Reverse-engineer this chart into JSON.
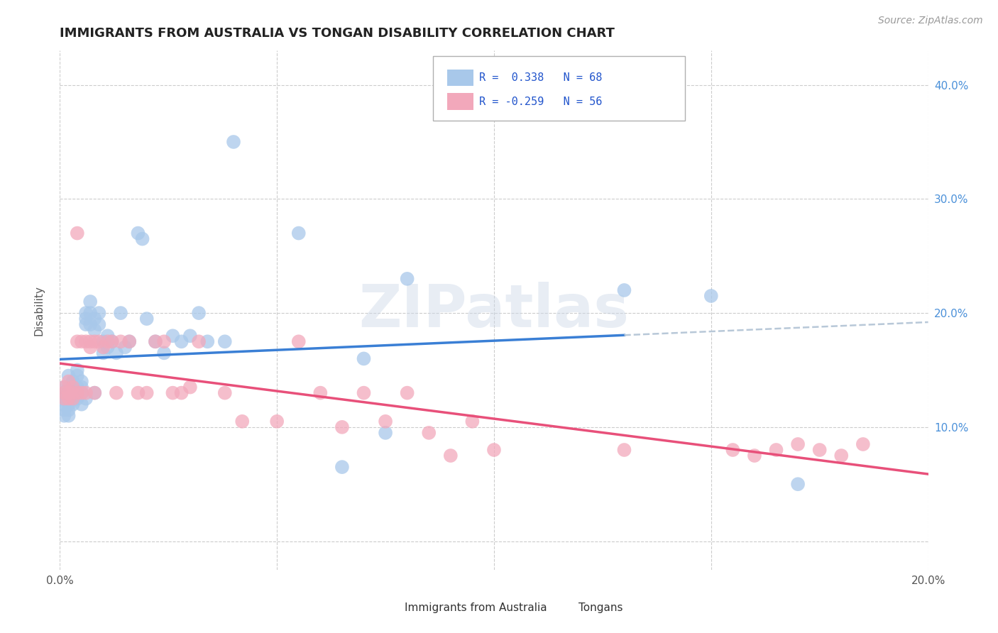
{
  "title": "IMMIGRANTS FROM AUSTRALIA VS TONGAN DISABILITY CORRELATION CHART",
  "source": "Source: ZipAtlas.com",
  "ylabel": "Disability",
  "xlim": [
    0.0,
    0.2
  ],
  "ylim": [
    -0.025,
    0.43
  ],
  "yticks": [
    0.0,
    0.1,
    0.2,
    0.3,
    0.4
  ],
  "xticks": [
    0.0,
    0.05,
    0.1,
    0.15,
    0.2
  ],
  "xtick_labels": [
    "0.0%",
    "",
    "",
    "",
    "20.0%"
  ],
  "ytick_labels_right": [
    "",
    "10.0%",
    "20.0%",
    "30.0%",
    "40.0%"
  ],
  "watermark": "ZIPatlas",
  "blue_color": "#a8c8ea",
  "pink_color": "#f2a8bb",
  "line_blue": "#3a7fd5",
  "line_pink": "#e8507a",
  "line_dash_color": "#b8c8d8",
  "blue_points_x": [
    0.001,
    0.001,
    0.001,
    0.001,
    0.001,
    0.001,
    0.002,
    0.002,
    0.002,
    0.002,
    0.002,
    0.002,
    0.002,
    0.003,
    0.003,
    0.003,
    0.003,
    0.003,
    0.004,
    0.004,
    0.004,
    0.004,
    0.004,
    0.005,
    0.005,
    0.005,
    0.005,
    0.006,
    0.006,
    0.006,
    0.006,
    0.007,
    0.007,
    0.007,
    0.008,
    0.008,
    0.008,
    0.009,
    0.009,
    0.01,
    0.01,
    0.011,
    0.011,
    0.012,
    0.013,
    0.014,
    0.015,
    0.016,
    0.018,
    0.019,
    0.02,
    0.022,
    0.024,
    0.026,
    0.028,
    0.03,
    0.032,
    0.034,
    0.038,
    0.04,
    0.055,
    0.065,
    0.07,
    0.075,
    0.08,
    0.13,
    0.15,
    0.17
  ],
  "blue_points_y": [
    0.135,
    0.13,
    0.125,
    0.12,
    0.115,
    0.11,
    0.145,
    0.135,
    0.13,
    0.125,
    0.12,
    0.115,
    0.11,
    0.14,
    0.135,
    0.13,
    0.125,
    0.12,
    0.15,
    0.145,
    0.135,
    0.13,
    0.125,
    0.14,
    0.135,
    0.13,
    0.12,
    0.2,
    0.195,
    0.19,
    0.125,
    0.21,
    0.2,
    0.19,
    0.195,
    0.185,
    0.13,
    0.2,
    0.19,
    0.175,
    0.165,
    0.18,
    0.17,
    0.175,
    0.165,
    0.2,
    0.17,
    0.175,
    0.27,
    0.265,
    0.195,
    0.175,
    0.165,
    0.18,
    0.175,
    0.18,
    0.2,
    0.175,
    0.175,
    0.35,
    0.27,
    0.065,
    0.16,
    0.095,
    0.23,
    0.22,
    0.215,
    0.05
  ],
  "pink_points_x": [
    0.001,
    0.001,
    0.001,
    0.002,
    0.002,
    0.002,
    0.003,
    0.003,
    0.003,
    0.004,
    0.004,
    0.004,
    0.005,
    0.005,
    0.006,
    0.006,
    0.007,
    0.007,
    0.008,
    0.008,
    0.009,
    0.01,
    0.011,
    0.012,
    0.013,
    0.014,
    0.016,
    0.018,
    0.02,
    0.022,
    0.024,
    0.026,
    0.028,
    0.03,
    0.032,
    0.038,
    0.042,
    0.05,
    0.055,
    0.06,
    0.065,
    0.07,
    0.075,
    0.08,
    0.085,
    0.09,
    0.095,
    0.1,
    0.13,
    0.155,
    0.16,
    0.165,
    0.17,
    0.175,
    0.18,
    0.185
  ],
  "pink_points_y": [
    0.135,
    0.13,
    0.125,
    0.14,
    0.13,
    0.125,
    0.135,
    0.13,
    0.125,
    0.27,
    0.175,
    0.13,
    0.175,
    0.13,
    0.175,
    0.13,
    0.175,
    0.17,
    0.175,
    0.13,
    0.175,
    0.17,
    0.175,
    0.175,
    0.13,
    0.175,
    0.175,
    0.13,
    0.13,
    0.175,
    0.175,
    0.13,
    0.13,
    0.135,
    0.175,
    0.13,
    0.105,
    0.105,
    0.175,
    0.13,
    0.1,
    0.13,
    0.105,
    0.13,
    0.095,
    0.075,
    0.105,
    0.08,
    0.08,
    0.08,
    0.075,
    0.08,
    0.085,
    0.08,
    0.075,
    0.085
  ]
}
